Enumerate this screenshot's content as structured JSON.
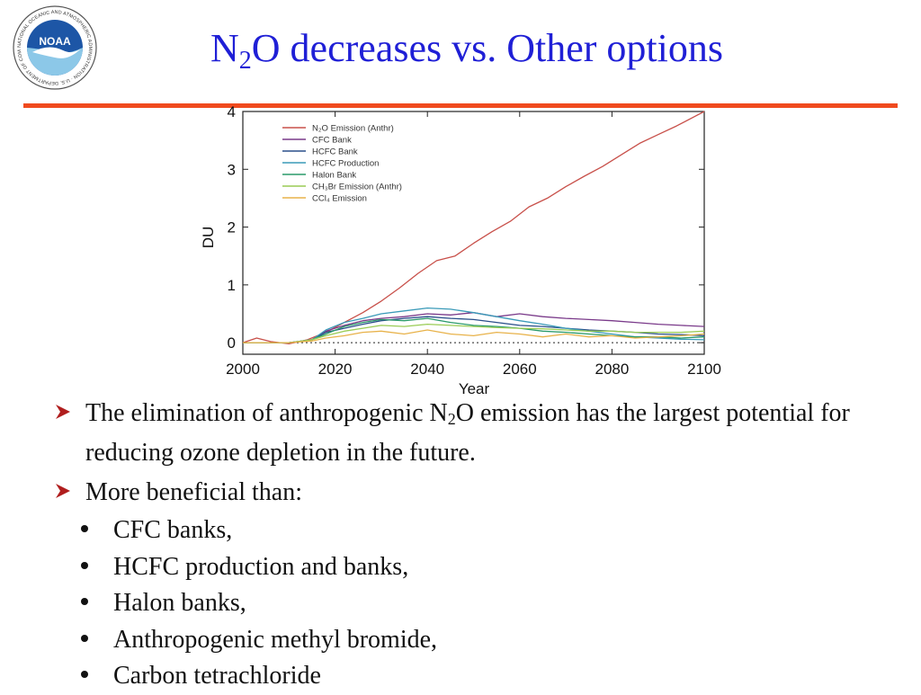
{
  "header": {
    "logo_icon": "noaa-seal-icon",
    "logo_text": "NOAA",
    "logo_ring_text": "NATIONAL OCEANIC AND ATMOSPHERIC ADMINISTRATION · U.S. DEPARTMENT OF COMMERCE",
    "title_pre": "N",
    "title_sub": "2",
    "title_post": "O decreases vs. Other options"
  },
  "colors": {
    "title": "#1f1fd6",
    "rule": "#f04a1e",
    "bullet_arrow": "#b01e1e"
  },
  "bullets": [
    {
      "icon": "arrow-bullet-icon",
      "pre": "The elimination of anthropogenic N",
      "sub": "2",
      "post": "O emission has the largest potential for reducing ozone depletion in the future."
    },
    {
      "icon": "arrow-bullet-icon",
      "pre": "More beneficial than:",
      "sub": "",
      "post": ""
    }
  ],
  "sub_bullets": [
    "CFC banks,",
    "HCFC production and banks,",
    "Halon banks,",
    "Anthropogenic methyl bromide,",
    "Carbon tetrachloride"
  ],
  "chart_data": {
    "type": "line",
    "title": "",
    "xlabel": "Year",
    "ylabel": "DU",
    "xlim": [
      2000,
      2100
    ],
    "ylim": [
      -0.2,
      4
    ],
    "xticks": [
      2000,
      2020,
      2040,
      2060,
      2080,
      2100
    ],
    "yticks": [
      0,
      1,
      2,
      3,
      4
    ],
    "grid": false,
    "legend": "top-left",
    "zero_line": "dotted",
    "series": [
      {
        "name": "N₂O Emission (Anthr)",
        "color": "#c8504a",
        "x": [
          2000,
          2003,
          2006,
          2010,
          2014,
          2018,
          2022,
          2026,
          2030,
          2034,
          2038,
          2042,
          2046,
          2050,
          2054,
          2058,
          2062,
          2066,
          2070,
          2074,
          2078,
          2082,
          2086,
          2090,
          2094,
          2100
        ],
        "y": [
          0.0,
          0.08,
          0.02,
          -0.02,
          0.05,
          0.18,
          0.35,
          0.52,
          0.72,
          0.95,
          1.2,
          1.42,
          1.5,
          1.72,
          1.92,
          2.1,
          2.35,
          2.5,
          2.7,
          2.88,
          3.05,
          3.25,
          3.45,
          3.6,
          3.75,
          4.0
        ]
      },
      {
        "name": "CFC Bank",
        "color": "#7a3a8a",
        "x": [
          2000,
          2005,
          2010,
          2015,
          2018,
          2022,
          2026,
          2030,
          2035,
          2040,
          2045,
          2050,
          2055,
          2060,
          2065,
          2070,
          2075,
          2080,
          2085,
          2090,
          2095,
          2100
        ],
        "y": [
          0.0,
          0.0,
          0.0,
          0.05,
          0.2,
          0.3,
          0.38,
          0.42,
          0.45,
          0.5,
          0.48,
          0.52,
          0.45,
          0.5,
          0.45,
          0.42,
          0.4,
          0.38,
          0.35,
          0.32,
          0.3,
          0.28
        ]
      },
      {
        "name": "HCFC Bank",
        "color": "#2a4f8a",
        "x": [
          2000,
          2005,
          2010,
          2015,
          2018,
          2022,
          2026,
          2030,
          2035,
          2040,
          2045,
          2050,
          2055,
          2060,
          2065,
          2070,
          2075,
          2080,
          2085,
          2090,
          2095,
          2100
        ],
        "y": [
          0.0,
          0.0,
          0.0,
          0.05,
          0.18,
          0.25,
          0.32,
          0.38,
          0.42,
          0.45,
          0.42,
          0.4,
          0.35,
          0.3,
          0.28,
          0.25,
          0.22,
          0.2,
          0.18,
          0.15,
          0.14,
          0.12
        ]
      },
      {
        "name": "HCFC Production",
        "color": "#3a9ab8",
        "x": [
          2000,
          2005,
          2010,
          2015,
          2018,
          2022,
          2026,
          2030,
          2035,
          2040,
          2045,
          2050,
          2055,
          2060,
          2065,
          2070,
          2075,
          2080,
          2085,
          2090,
          2095,
          2100
        ],
        "y": [
          0.0,
          0.0,
          0.0,
          0.05,
          0.22,
          0.35,
          0.42,
          0.5,
          0.55,
          0.6,
          0.58,
          0.52,
          0.45,
          0.38,
          0.32,
          0.25,
          0.2,
          0.15,
          0.1,
          0.08,
          0.06,
          0.05
        ]
      },
      {
        "name": "Halon Bank",
        "color": "#2a9a6a",
        "x": [
          2000,
          2005,
          2010,
          2015,
          2018,
          2022,
          2026,
          2030,
          2035,
          2040,
          2045,
          2050,
          2055,
          2060,
          2065,
          2070,
          2075,
          2080,
          2085,
          2090,
          2095,
          2100
        ],
        "y": [
          0.0,
          0.0,
          0.0,
          0.05,
          0.15,
          0.28,
          0.35,
          0.4,
          0.38,
          0.42,
          0.35,
          0.3,
          0.28,
          0.25,
          0.2,
          0.18,
          0.15,
          0.12,
          0.1,
          0.1,
          0.08,
          0.1
        ]
      },
      {
        "name": "CH₃Br Emission (Anthr)",
        "color": "#9acc55",
        "x": [
          2000,
          2005,
          2010,
          2015,
          2018,
          2022,
          2026,
          2030,
          2035,
          2040,
          2045,
          2050,
          2055,
          2060,
          2065,
          2070,
          2075,
          2080,
          2085,
          2090,
          2095,
          2100
        ],
        "y": [
          0.0,
          0.0,
          0.0,
          0.05,
          0.12,
          0.2,
          0.25,
          0.3,
          0.28,
          0.32,
          0.3,
          0.28,
          0.26,
          0.25,
          0.24,
          0.22,
          0.2,
          0.2,
          0.18,
          0.18,
          0.18,
          0.2
        ]
      },
      {
        "name": "CCl₄ Emission",
        "color": "#e8b24a",
        "x": [
          2000,
          2005,
          2010,
          2015,
          2018,
          2022,
          2026,
          2030,
          2035,
          2040,
          2045,
          2050,
          2055,
          2060,
          2065,
          2070,
          2075,
          2080,
          2085,
          2090,
          2095,
          2100
        ],
        "y": [
          0.0,
          0.0,
          0.0,
          0.03,
          0.08,
          0.12,
          0.18,
          0.2,
          0.15,
          0.22,
          0.15,
          0.12,
          0.18,
          0.15,
          0.1,
          0.15,
          0.1,
          0.12,
          0.08,
          0.1,
          0.12,
          0.15
        ]
      }
    ]
  }
}
